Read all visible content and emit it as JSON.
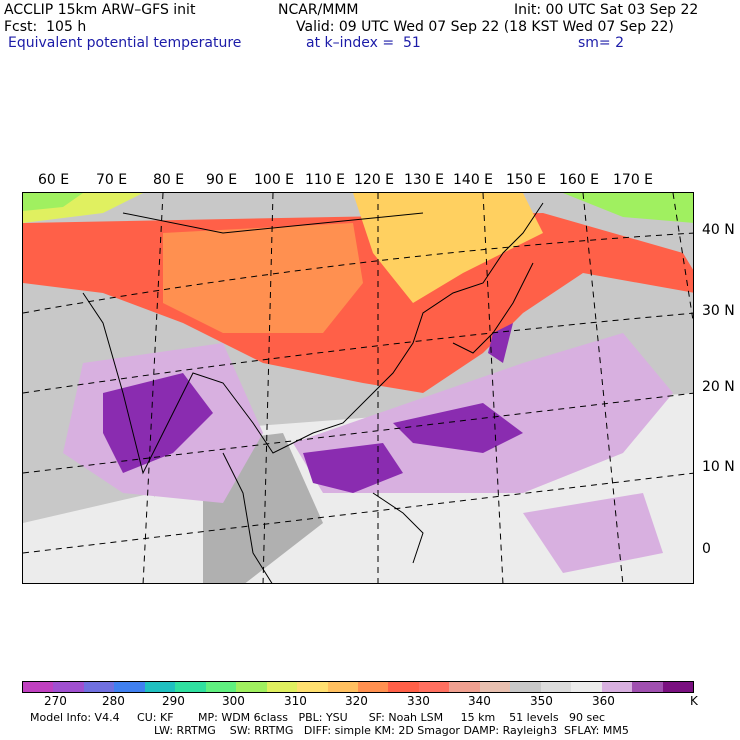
{
  "header": {
    "line1_left": "ACCLIP 15km ARW–GFS init",
    "line1_center": "NCAR/MMM",
    "line1_right": "Init: 00 UTC Sat 03 Sep 22",
    "line2_left": "Fcst:  105 h",
    "line2_right": "Valid: 09 UTC Wed 07 Sep 22 (18 KST Wed 07 Sep 22)",
    "line3_field": "Equivalent potential temperature",
    "line3_level": "at k–index =  51",
    "line3_smooth": "sm= 2"
  },
  "map": {
    "lon_labels": [
      "60 E",
      "70 E",
      "80 E",
      "90 E",
      "100 E",
      "110 E",
      "120 E",
      "130 E",
      "140 E",
      "150 E",
      "160 E",
      "170 E"
    ],
    "lat_labels": [
      "40 N",
      "30 N",
      "20 N",
      "10 N",
      "0"
    ],
    "regions": {
      "warm_north": "#ff6048",
      "china": "#ff9050",
      "mongolia": "#ffd060",
      "far_north_green": "#a0f060",
      "moist_purple": "#8a2cb0",
      "light_purple": "#d8b0e0",
      "ocean_light": "#ececec",
      "mid_gray": "#c8c8c8",
      "dark_gray": "#b0b0b0"
    }
  },
  "colorbar": {
    "colors": [
      "#c040c0",
      "#a050d0",
      "#7070e0",
      "#4080f0",
      "#20c0c0",
      "#30e0a0",
      "#60f080",
      "#a0f060",
      "#e0f060",
      "#ffe070",
      "#ffc060",
      "#ff9050",
      "#ff6048",
      "#ff7060",
      "#f0a090",
      "#e8c0b0",
      "#c8c8c8",
      "#dcdcdc",
      "#ececec",
      "#d8b0e0",
      "#a050b0",
      "#7a1080"
    ],
    "ticks": [
      "270",
      "280",
      "290",
      "300",
      "310",
      "320",
      "330",
      "340",
      "350",
      "360",
      "K"
    ]
  },
  "footer": {
    "line1": "Model Info: V4.4     CU: KF       MP: WDM 6class   PBL: YSU      SF: Noah LSM     15 km    51 levels   90 sec",
    "line2": "LW: RRTMG    SW: RRTMG   DIFF: simple KM: 2D Smagor DAMP: Rayleigh3  SFLAY: MM5"
  }
}
